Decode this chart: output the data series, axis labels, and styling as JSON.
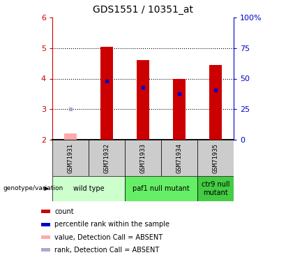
{
  "title": "GDS1551 / 10351_at",
  "samples": [
    "GSM71931",
    "GSM71932",
    "GSM71933",
    "GSM71934",
    "GSM71935"
  ],
  "bar_values": [
    2.2,
    5.05,
    4.6,
    4.0,
    4.45
  ],
  "bar_colors": [
    "#ffaaaa",
    "#cc0000",
    "#cc0000",
    "#cc0000",
    "#cc0000"
  ],
  "rank_values": [
    3.0,
    3.93,
    3.72,
    3.5,
    3.62
  ],
  "rank_colors": [
    "#aaaacc",
    "#0000cc",
    "#0000cc",
    "#0000cc",
    "#0000cc"
  ],
  "ylim_left": [
    2,
    6
  ],
  "ylim_right": [
    0,
    100
  ],
  "yticks_left": [
    2,
    3,
    4,
    5,
    6
  ],
  "yticks_right": [
    0,
    25,
    50,
    75,
    100
  ],
  "yticklabels_right": [
    "0",
    "25",
    "50",
    "75",
    "100%"
  ],
  "grid_lines": [
    3,
    4,
    5
  ],
  "groups": [
    {
      "label": "wild type",
      "samples": [
        0,
        1
      ],
      "color": "#ccffcc"
    },
    {
      "label": "paf1 null mutant",
      "samples": [
        2,
        3
      ],
      "color": "#66ee66"
    },
    {
      "label": "ctr9 null\nmutant",
      "samples": [
        4
      ],
      "color": "#44cc44"
    }
  ],
  "group_label": "genotype/variation",
  "legend_items": [
    {
      "color": "#cc0000",
      "label": "count"
    },
    {
      "color": "#0000cc",
      "label": "percentile rank within the sample"
    },
    {
      "color": "#ffaaaa",
      "label": "value, Detection Call = ABSENT"
    },
    {
      "color": "#aaaacc",
      "label": "rank, Detection Call = ABSENT"
    }
  ],
  "bar_bottom": 2,
  "bar_width": 0.35,
  "label_color_left": "#cc0000",
  "label_color_right": "#0000cc",
  "sample_bg": "#cccccc",
  "fig_width": 4.33,
  "fig_height": 3.75,
  "dpi": 100
}
